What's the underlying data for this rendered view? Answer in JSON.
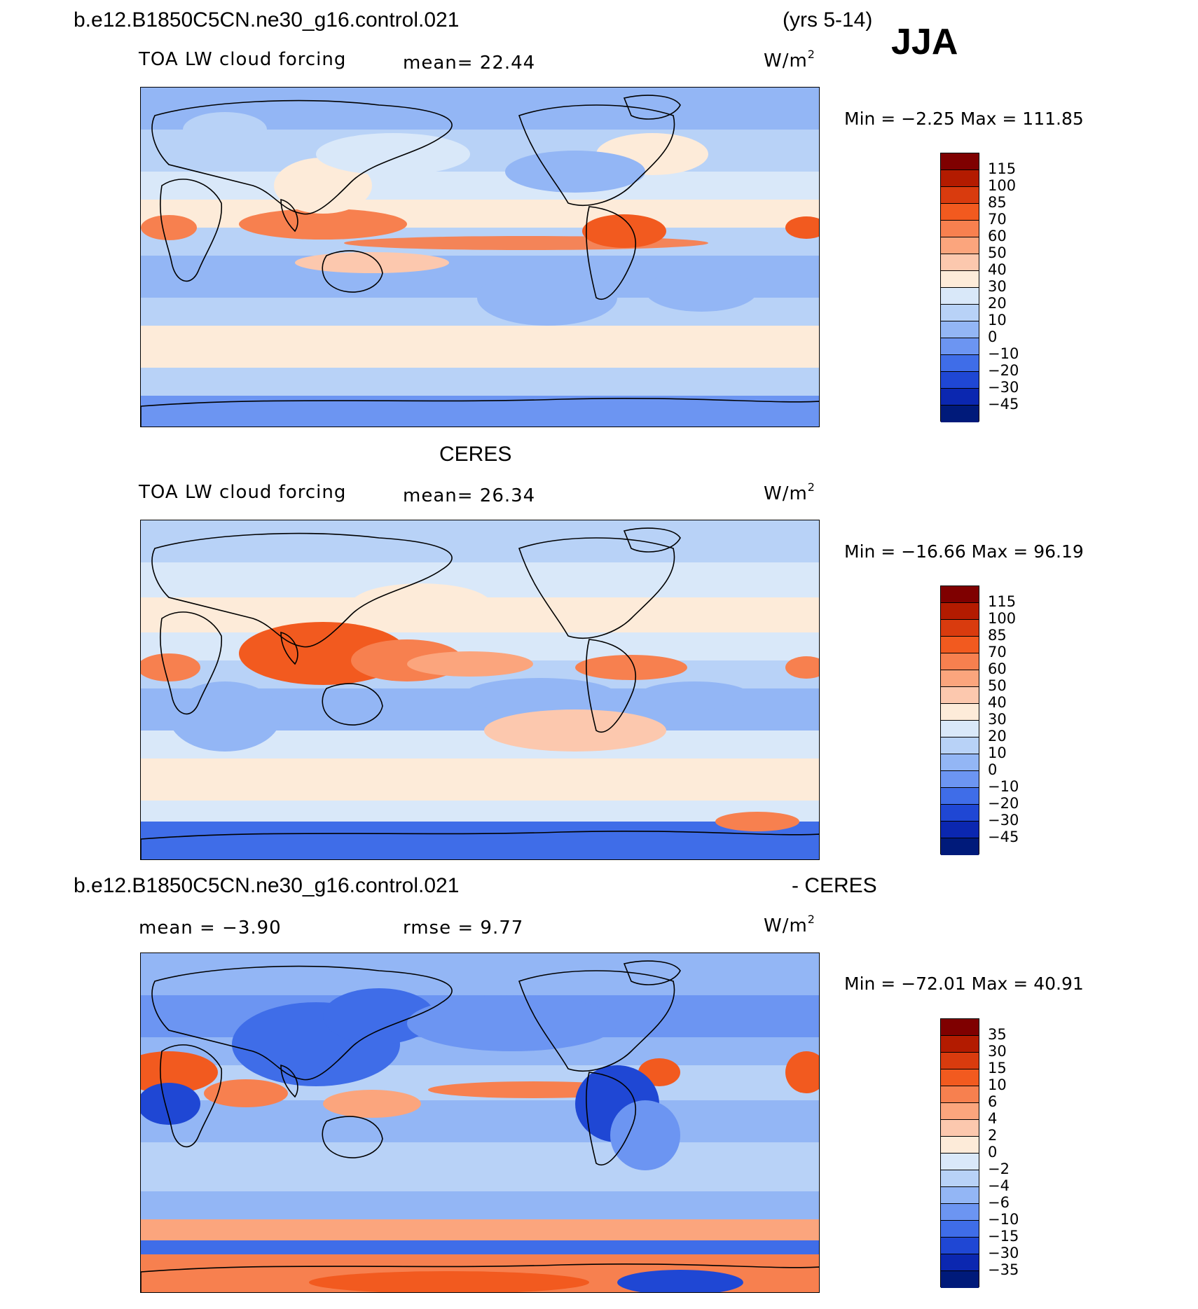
{
  "case_name": "b.e12.B1850C5CN.ne30_g16.control.021",
  "years": "(yrs 5-14)",
  "season": "JJA",
  "panels": [
    {
      "title": "",
      "variable": "TOA LW cloud forcing",
      "stat_left": "",
      "stat_mid": "mean=  22.44",
      "units": "W/m",
      "units_sup": "2",
      "minmax": "Min =   −2.25 Max =  111.85",
      "colorbar_levels": [
        "115",
        "100",
        "85",
        "70",
        "60",
        "50",
        "40",
        "30",
        "20",
        "10",
        "0",
        "−10",
        "−20",
        "−30",
        "−45"
      ],
      "colorbar_colors": [
        "#7f0000",
        "#b31b00",
        "#d93b0e",
        "#f25a1f",
        "#f7804f",
        "#fba57d",
        "#fcc8ae",
        "#fdebd9",
        "#d9e8f9",
        "#b8d2f7",
        "#93b6f5",
        "#6c95f2",
        "#3f6de8",
        "#1f47d4",
        "#0b27b0",
        "#001a7a"
      ],
      "stats": {
        "mean": 22.44,
        "min": -2.25,
        "max": 111.85
      }
    },
    {
      "title": "CERES",
      "variable": "TOA LW cloud forcing",
      "stat_left": "",
      "stat_mid": "mean=  26.34",
      "units": "W/m",
      "units_sup": "2",
      "minmax": "Min = −16.66 Max =   96.19",
      "colorbar_levels": [
        "115",
        "100",
        "85",
        "70",
        "60",
        "50",
        "40",
        "30",
        "20",
        "10",
        "0",
        "−10",
        "−20",
        "−30",
        "−45"
      ],
      "colorbar_colors": [
        "#7f0000",
        "#b31b00",
        "#d93b0e",
        "#f25a1f",
        "#f7804f",
        "#fba57d",
        "#fcc8ae",
        "#fdebd9",
        "#d9e8f9",
        "#b8d2f7",
        "#93b6f5",
        "#6c95f2",
        "#3f6de8",
        "#1f47d4",
        "#0b27b0",
        "#001a7a"
      ],
      "stats": {
        "mean": 26.34,
        "min": -16.66,
        "max": 96.19
      }
    },
    {
      "title": "- CERES",
      "variable": "",
      "stat_left": "mean =  −3.90",
      "stat_mid": "rmse =   9.77",
      "units": "W/m",
      "units_sup": "2",
      "minmax": "Min = −72.01 Max =   40.91",
      "colorbar_levels": [
        "35",
        "30",
        "15",
        "10",
        "6",
        "4",
        "2",
        "0",
        "−2",
        "−4",
        "−6",
        "−10",
        "−15",
        "−30",
        "−35"
      ],
      "colorbar_colors": [
        "#7f0000",
        "#b31b00",
        "#d93b0e",
        "#f25a1f",
        "#f7804f",
        "#fba57d",
        "#fcc8ae",
        "#fdebd9",
        "#d9e8f9",
        "#b8d2f7",
        "#93b6f5",
        "#6c95f2",
        "#3f6de8",
        "#1f47d4",
        "#0b27b0",
        "#001a7a"
      ],
      "stats": {
        "mean": -3.9,
        "rmse": 9.77,
        "min": -72.01,
        "max": 40.91
      }
    }
  ]
}
